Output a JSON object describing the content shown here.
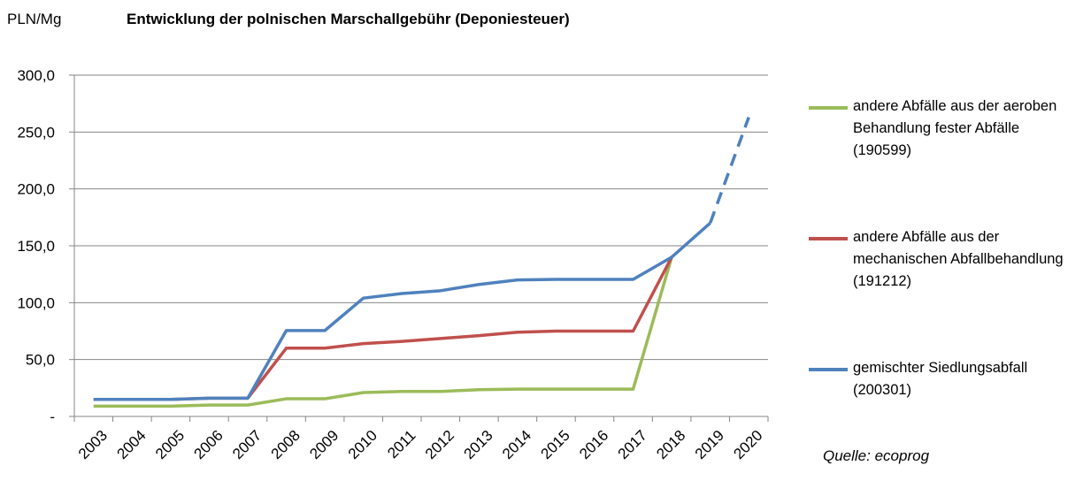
{
  "header": {
    "y_unit": "PLN/Mg",
    "title": "Entwicklung  der polnischen  Marschallgebühr  (Deponiesteuer)"
  },
  "source_note": "Quelle: ecoprog",
  "chart_data": {
    "type": "line",
    "title": "Entwicklung  der polnischen  Marschallgebühr  (Deponiesteuer)",
    "ylabel": "PLN/Mg",
    "xlabel": "",
    "ylim": [
      0,
      300
    ],
    "y_ticks": [
      "-",
      "50,0",
      "100,0",
      "150,0",
      "200,0",
      "250,0",
      "300,0"
    ],
    "y_tick_values": [
      0,
      50,
      100,
      150,
      200,
      250,
      300
    ],
    "categories": [
      "2003",
      "2004",
      "2005",
      "2006",
      "2007",
      "2008",
      "2009",
      "2010",
      "2011",
      "2012",
      "2013",
      "2014",
      "2015",
      "2016",
      "2017",
      "2018",
      "2019",
      "2020"
    ],
    "grid": true,
    "legend_position": "right",
    "series": [
      {
        "name": "andere Abfälle aus der aeroben\nBehandlung fester Abfälle\n(190599)",
        "color": "#9BBB59",
        "values": [
          9,
          9,
          9,
          10,
          10,
          15.5,
          15.5,
          21,
          22,
          22,
          23.5,
          24,
          24,
          24,
          24,
          140,
          null,
          null
        ],
        "dashed_values": null
      },
      {
        "name": "andere Abfälle aus der\nmechanischen Abfallbehandlung\n(191212)",
        "color": "#C0504D",
        "values": [
          15,
          15,
          15,
          16,
          16,
          60,
          60,
          64,
          66,
          68.5,
          71,
          74,
          75,
          75,
          75,
          140,
          null,
          null
        ],
        "dashed_values": null
      },
      {
        "name": "gemischter Siedlungsabfall\n(200301)",
        "color": "#4F81BD",
        "values": [
          15,
          15,
          15,
          16,
          16,
          75.5,
          75.5,
          104,
          108,
          110.5,
          116,
          120,
          120.5,
          120.5,
          120.5,
          140,
          170,
          null
        ],
        "dashed_values": [
          null,
          null,
          null,
          null,
          null,
          null,
          null,
          null,
          null,
          null,
          null,
          null,
          null,
          null,
          null,
          null,
          170,
          263
        ]
      }
    ]
  }
}
